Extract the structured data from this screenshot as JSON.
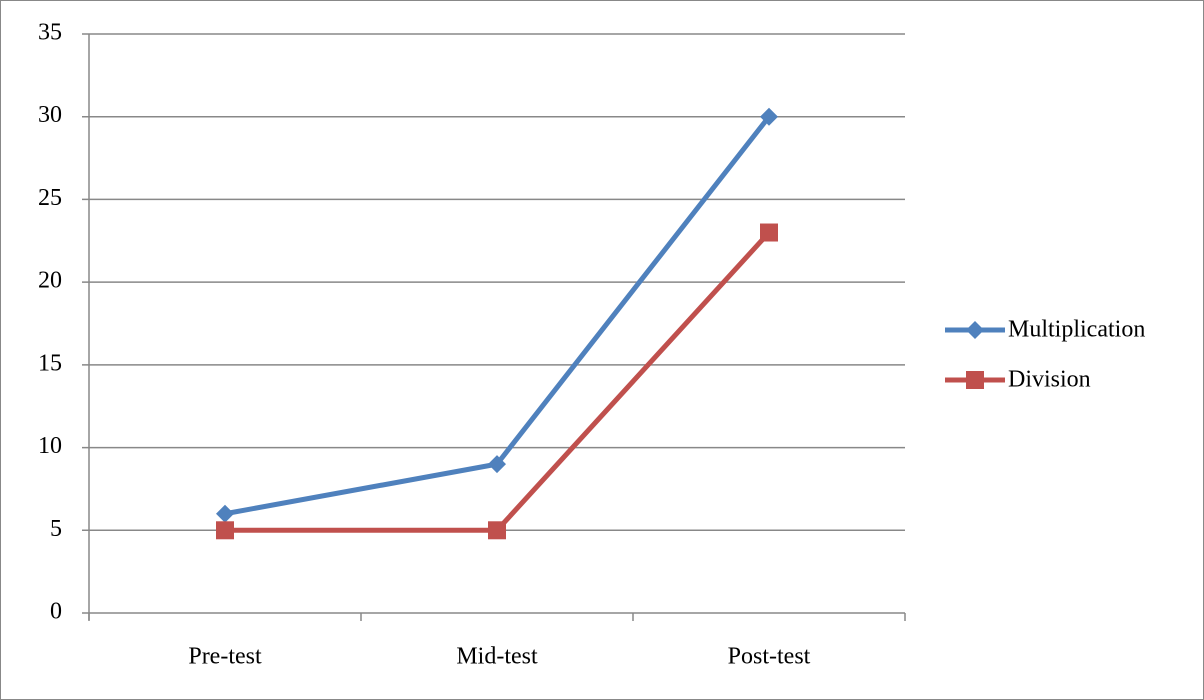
{
  "chart_data": {
    "type": "line",
    "categories": [
      "Pre-test",
      "Mid-test",
      "Post-test"
    ],
    "series": [
      {
        "name": "Multiplication",
        "color": "#4f81bd",
        "marker": "diamond",
        "values": [
          6,
          9,
          30
        ]
      },
      {
        "name": "Division",
        "color": "#c0504d",
        "marker": "square",
        "values": [
          5,
          5,
          23
        ]
      }
    ],
    "ylim": [
      0,
      35
    ],
    "yticks": [
      0,
      5,
      10,
      15,
      20,
      25,
      30,
      35
    ],
    "grid": true,
    "legend": "right"
  }
}
